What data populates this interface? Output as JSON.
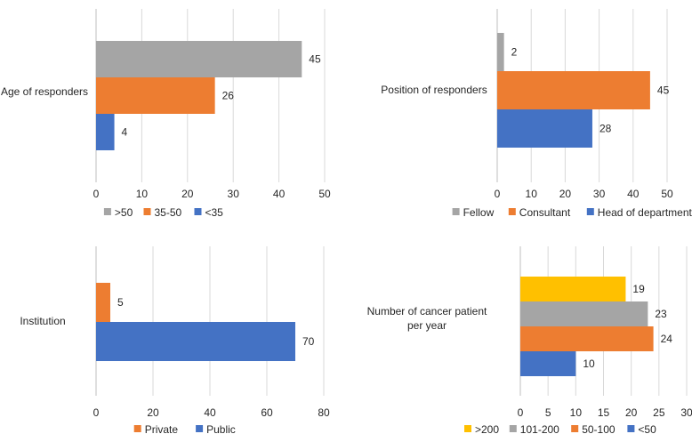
{
  "chart_data": [
    {
      "type": "bar",
      "orientation": "horizontal",
      "ylabel": "Age of responders",
      "series": [
        {
          "name": ">50",
          "value": 45,
          "color": "#a5a5a5"
        },
        {
          "name": "35-50",
          "value": 26,
          "color": "#ed7d31"
        },
        {
          "name": "<35",
          "value": 4,
          "color": "#4472c4"
        }
      ],
      "xlim": [
        0,
        50
      ],
      "xticks": [
        0,
        10,
        20,
        30,
        40,
        50
      ],
      "legend_position": "bottom",
      "grid": true
    },
    {
      "type": "bar",
      "orientation": "horizontal",
      "ylabel": "Position of responders",
      "series": [
        {
          "name": "Fellow",
          "value": 2,
          "color": "#a5a5a5"
        },
        {
          "name": "Consultant",
          "value": 45,
          "color": "#ed7d31"
        },
        {
          "name": "Head of department",
          "value": 28,
          "color": "#4472c4"
        }
      ],
      "xlim": [
        0,
        50
      ],
      "xticks": [
        0,
        10,
        20,
        30,
        40,
        50
      ],
      "legend_position": "bottom",
      "grid": true
    },
    {
      "type": "bar",
      "orientation": "horizontal",
      "ylabel": "Institution",
      "series": [
        {
          "name": "Private",
          "value": 5,
          "color": "#ed7d31"
        },
        {
          "name": "Public",
          "value": 70,
          "color": "#4472c4"
        }
      ],
      "xlim": [
        0,
        80
      ],
      "xticks": [
        0,
        20,
        40,
        60,
        80
      ],
      "legend_position": "bottom",
      "grid": true
    },
    {
      "type": "bar",
      "orientation": "horizontal",
      "ylabel": "Number of cancer patient per year",
      "series": [
        {
          "name": ">200",
          "value": 19,
          "color": "#ffc000"
        },
        {
          "name": "101-200",
          "value": 23,
          "color": "#a5a5a5"
        },
        {
          "name": "50-100",
          "value": 24,
          "color": "#ed7d31"
        },
        {
          "name": "<50",
          "value": 10,
          "color": "#4472c4"
        }
      ],
      "xlim": [
        0,
        30
      ],
      "xticks": [
        0,
        5,
        10,
        15,
        20,
        25,
        30
      ],
      "legend_position": "bottom",
      "grid": true
    }
  ]
}
